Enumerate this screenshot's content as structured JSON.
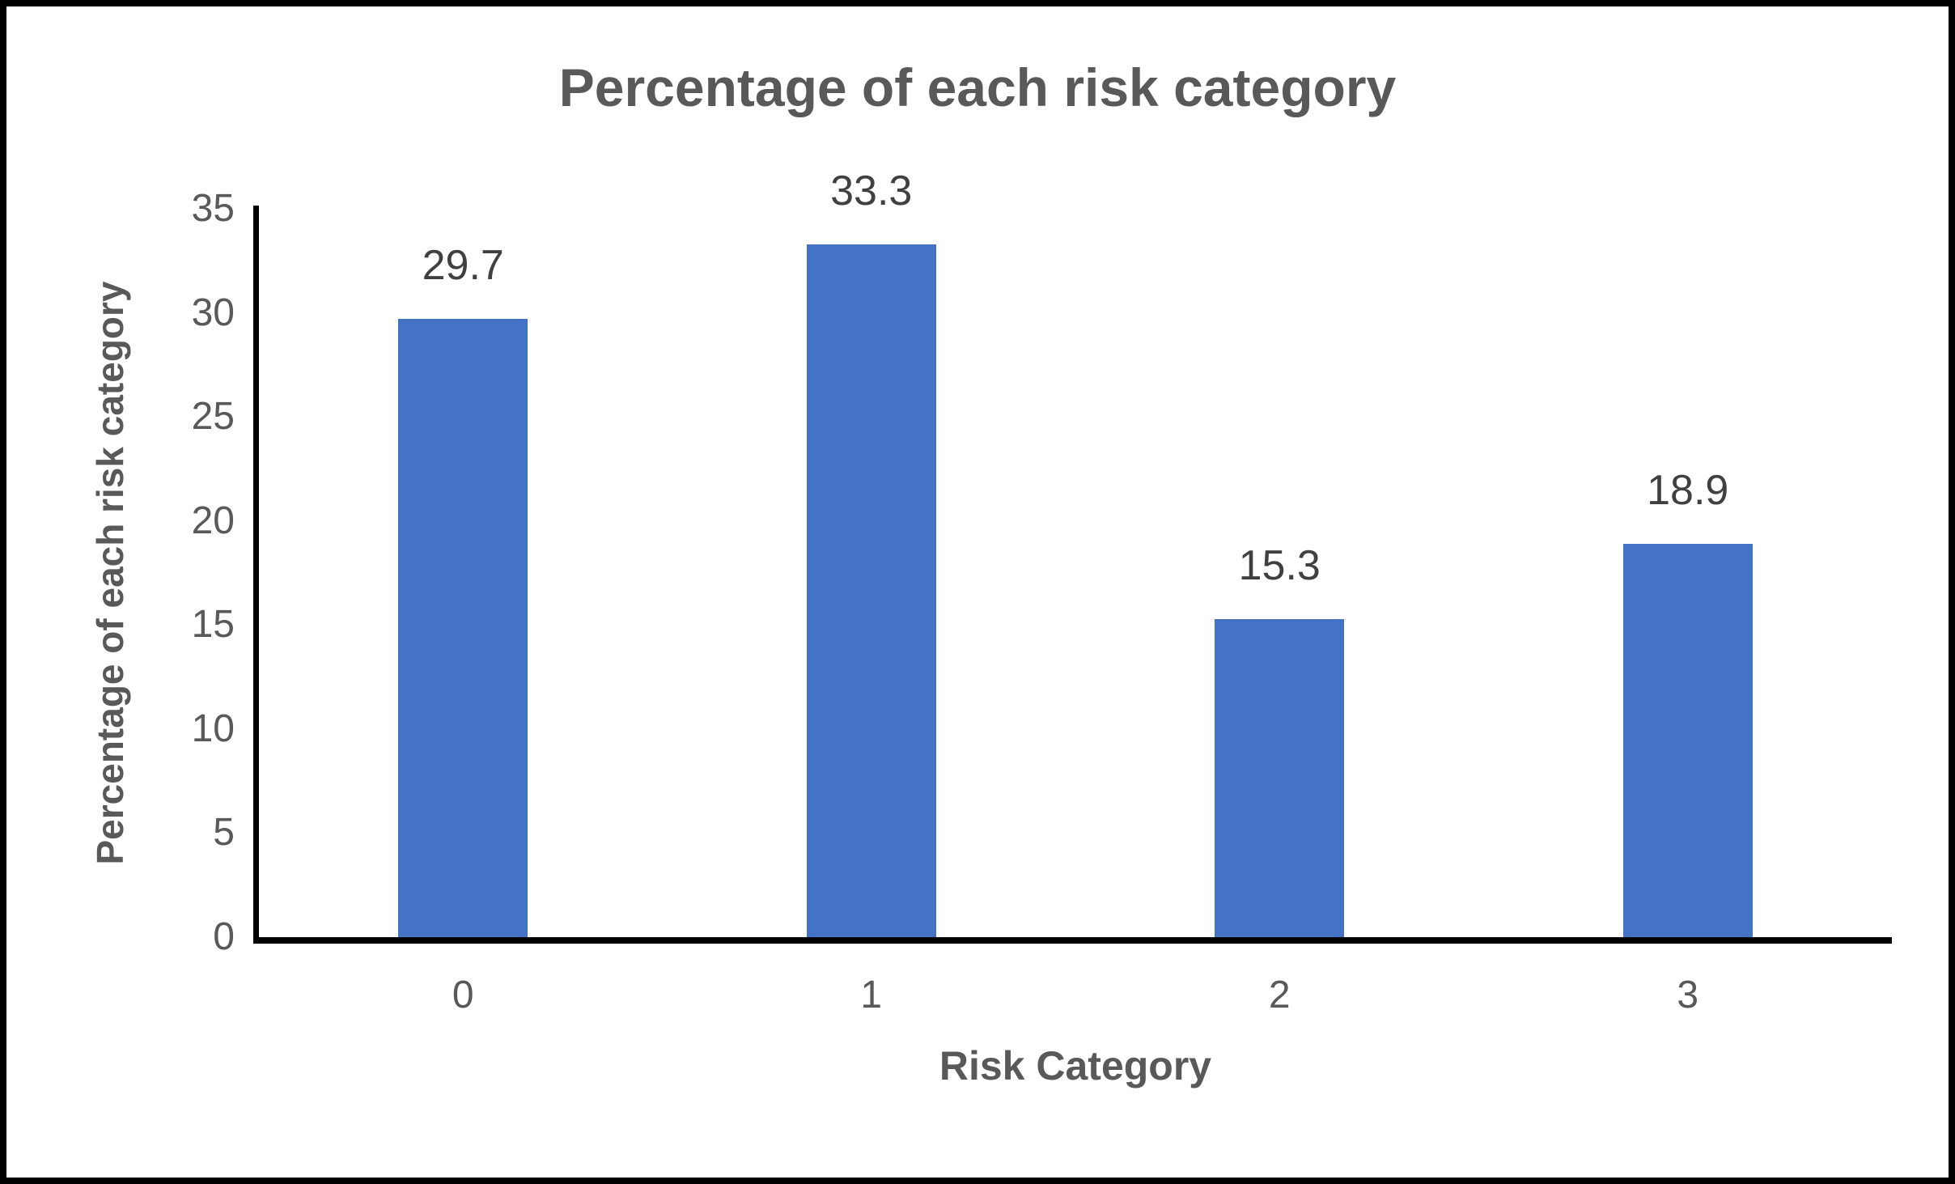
{
  "chart_data": {
    "type": "bar",
    "title": "Percentage of each risk category",
    "xlabel": "Risk Category",
    "ylabel": "Percentage of each risk category",
    "categories": [
      "0",
      "1",
      "2",
      "3"
    ],
    "values": [
      29.7,
      33.3,
      15.3,
      18.9
    ],
    "data_labels": [
      "29.7",
      "33.3",
      "15.3",
      "18.9"
    ],
    "ylim": [
      0,
      35
    ],
    "yticks": [
      0,
      5,
      10,
      15,
      20,
      25,
      30,
      35
    ],
    "grid": false,
    "legend": false,
    "bar_color": "#4472C4",
    "axis_text_color": "#595959",
    "data_label_color": "#404040",
    "axis_line_color": "#000000",
    "border_color": "#000000"
  }
}
